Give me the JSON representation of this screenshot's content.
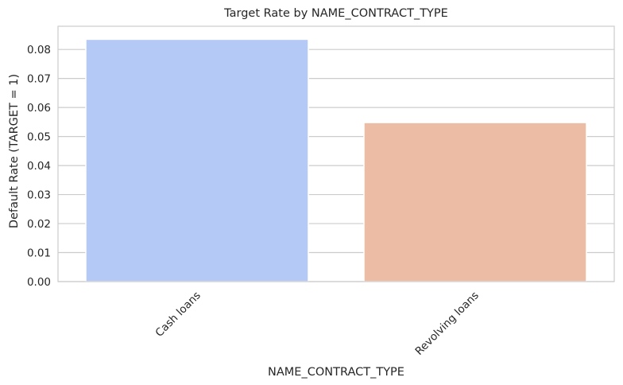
{
  "chart_data": {
    "type": "bar",
    "title": "Target Rate by NAME_CONTRACT_TYPE",
    "xlabel": "NAME_CONTRACT_TYPE",
    "ylabel": "Default Rate (TARGET = 1)",
    "categories": [
      "Cash loans",
      "Revolving loans"
    ],
    "values": [
      0.0835,
      0.0548
    ],
    "bar_colors": [
      "#b4c9f5",
      "#edbca5"
    ],
    "ylim": [
      0,
      0.088
    ],
    "yticks": [
      0.0,
      0.01,
      0.02,
      0.03,
      0.04,
      0.05,
      0.06,
      0.07,
      0.08
    ],
    "ytick_labels": [
      "0.00",
      "0.01",
      "0.02",
      "0.03",
      "0.04",
      "0.05",
      "0.06",
      "0.07",
      "0.08"
    ],
    "grid": "y",
    "legend": "none",
    "xtick_rotation": 45
  }
}
